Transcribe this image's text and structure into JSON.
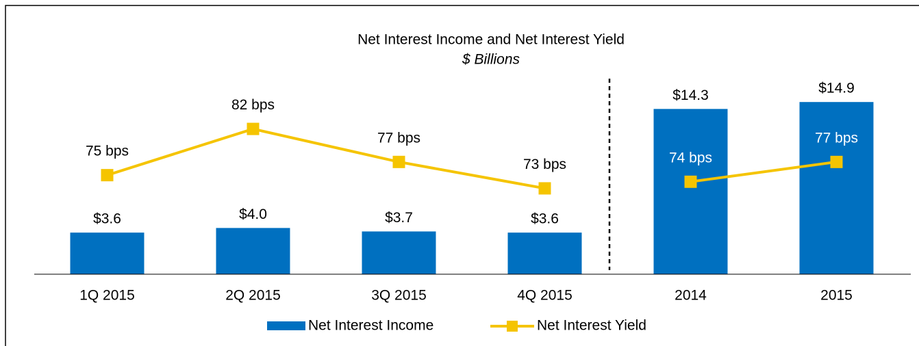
{
  "chart_data": [
    {
      "type": "bar-line",
      "title": "Net Interest Income and Net Interest Yield",
      "subtitle": "$ Billions",
      "categories": [
        "1Q 2015",
        "2Q 2015",
        "3Q 2015",
        "4Q 2015"
      ],
      "series": [
        {
          "name": "Net Interest Income",
          "type": "bar",
          "color": "#0070c0",
          "values": [
            3.6,
            4.0,
            3.7,
            3.6
          ],
          "value_labels": [
            "$3.6",
            "$4.0",
            "$3.7",
            "$3.6"
          ]
        },
        {
          "name": "Net Interest Yield",
          "type": "line",
          "axis": "y2",
          "color": "#f5c400",
          "values": [
            75,
            82,
            77,
            73
          ],
          "value_labels": [
            "75 bps",
            "82 bps",
            "77 bps",
            "73 bps"
          ]
        }
      ],
      "ylim": [
        0,
        20
      ],
      "y2lim": [
        60,
        95
      ]
    },
    {
      "type": "bar-line",
      "categories": [
        "2014",
        "2015"
      ],
      "series": [
        {
          "type": "bar",
          "color": "#0070c0",
          "values": [
            14.3,
            14.9
          ],
          "value_labels": [
            "$14.3",
            "$14.9"
          ]
        },
        {
          "type": "line",
          "axis": "y2",
          "color": "#f5c400",
          "values": [
            74,
            77
          ],
          "value_labels": [
            "74 bps",
            "77 bps"
          ]
        }
      ],
      "ylim": [
        0,
        20
      ],
      "y2lim": [
        60,
        95
      ]
    }
  ]
}
